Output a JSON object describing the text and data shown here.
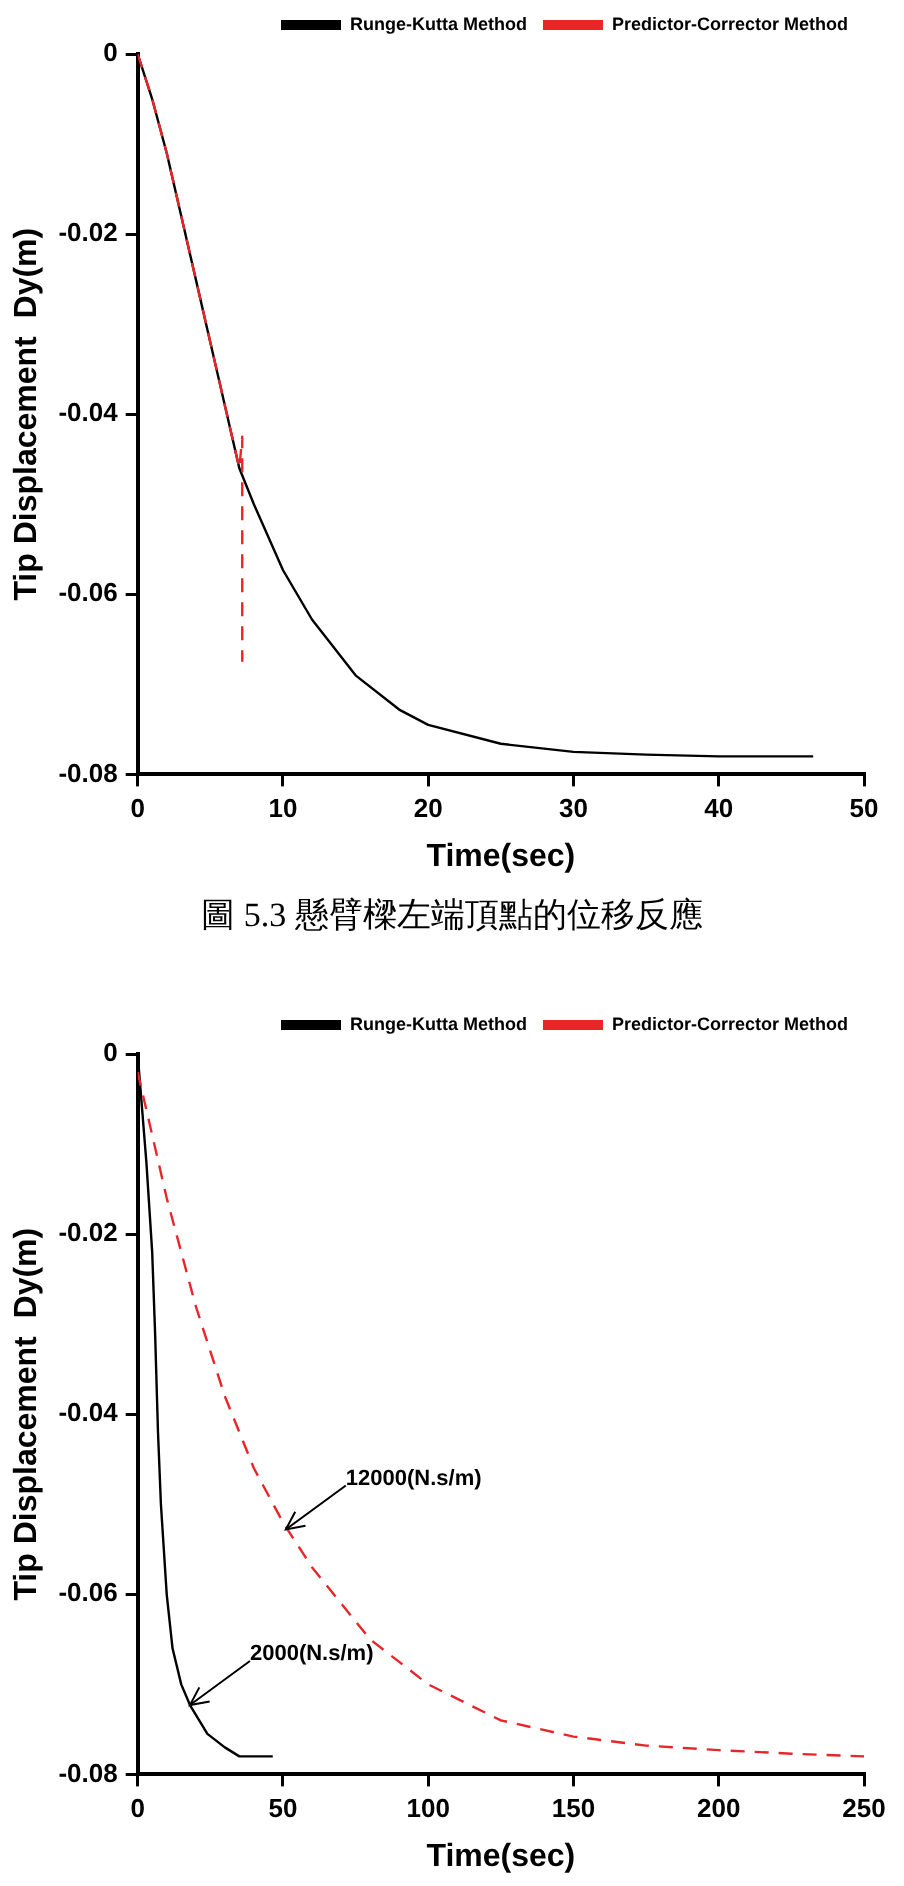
{
  "chart_data": [
    {
      "type": "line",
      "xlabel": "Time(sec)",
      "ylabel": "Tip Displacement  Dy(m)",
      "xlim": [
        0,
        50
      ],
      "ylim": [
        -0.08,
        0
      ],
      "xticks": [
        0,
        10,
        20,
        30,
        40,
        50
      ],
      "yticks": [
        -0.08,
        -0.06,
        -0.04,
        -0.02,
        0
      ],
      "legend": "top right",
      "marker": "none",
      "grid": false,
      "series": [
        {
          "name": "Runge-Kutta Method",
          "color": "#000000",
          "line_style": "solid",
          "x": [
            0,
            1,
            2,
            3,
            4,
            5,
            6,
            7,
            8,
            10,
            12,
            15,
            18,
            20,
            25,
            30,
            35,
            40,
            46.5
          ],
          "values": [
            0,
            -0.005,
            -0.011,
            -0.018,
            -0.025,
            -0.032,
            -0.039,
            -0.046,
            -0.05,
            -0.0573,
            -0.0628,
            -0.069,
            -0.0728,
            -0.0745,
            -0.0766,
            -0.0775,
            -0.0778,
            -0.078,
            -0.078
          ]
        },
        {
          "name": "Predictor-Corrector Method",
          "color": "#e8262a",
          "line_style": "dashed",
          "x": [
            0,
            1,
            2,
            3,
            4,
            5,
            6,
            7,
            7.2,
            7.2
          ],
          "values": [
            0,
            -0.005,
            -0.011,
            -0.018,
            -0.025,
            -0.032,
            -0.039,
            -0.046,
            -0.0425,
            -0.0675
          ]
        }
      ],
      "annotations": [
        "圖 5.3 懸臂樑左端頂點的位移反應"
      ]
    },
    {
      "type": "line",
      "xlabel": "Time(sec)",
      "ylabel": "Tip Displacement  Dy(m)",
      "xlim": [
        0,
        250
      ],
      "ylim": [
        -0.08,
        0
      ],
      "xticks": [
        0,
        50,
        100,
        150,
        200,
        250
      ],
      "yticks": [
        -0.08,
        -0.06,
        -0.04,
        -0.02,
        0
      ],
      "legend": "top right",
      "marker": "none",
      "grid": false,
      "series": [
        {
          "name": "Runge-Kutta Method",
          "color": "#000000",
          "line_style": "solid",
          "x": [
            0,
            3,
            5,
            6,
            7,
            8,
            10,
            12,
            15,
            18,
            24,
            30,
            35,
            46.5
          ],
          "values": [
            0,
            -0.012,
            -0.022,
            -0.031,
            -0.042,
            -0.05,
            -0.06,
            -0.066,
            -0.07,
            -0.0723,
            -0.0755,
            -0.077,
            -0.078,
            -0.078
          ]
        },
        {
          "name": "Predictor-Corrector Method",
          "color": "#e8262a",
          "line_style": "dashed",
          "x": [
            0,
            10,
            20,
            30,
            40,
            50,
            60,
            70,
            80,
            100,
            125,
            150,
            175,
            200,
            225,
            250
          ],
          "values": [
            -0.002,
            -0.016,
            -0.028,
            -0.038,
            -0.046,
            -0.052,
            -0.057,
            -0.061,
            -0.065,
            -0.07,
            -0.074,
            -0.0758,
            -0.0768,
            -0.0773,
            -0.0777,
            -0.078
          ]
        }
      ],
      "annotations": [
        {
          "text": "12000(N.s/m)",
          "x": 51,
          "y": -0.0528
        },
        {
          "text": "2000(N.s/m)",
          "x": 18,
          "y": -0.0723
        }
      ]
    }
  ]
}
